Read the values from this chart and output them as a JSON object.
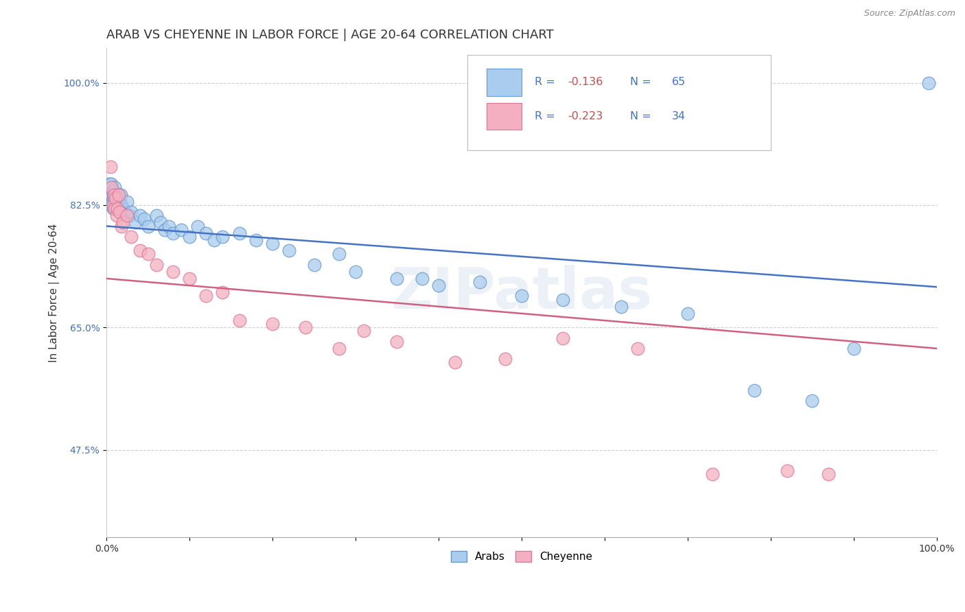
{
  "title": "ARAB VS CHEYENNE IN LABOR FORCE | AGE 20-64 CORRELATION CHART",
  "source_text": "Source: ZipAtlas.com",
  "ylabel": "In Labor Force | Age 20-64",
  "watermark": "ZIPatlas",
  "xlim": [
    0.0,
    1.0
  ],
  "ylim": [
    0.35,
    1.05
  ],
  "xticks": [
    0.0,
    0.1,
    0.2,
    0.3,
    0.4,
    0.5,
    0.6,
    0.7,
    0.8,
    0.9,
    1.0
  ],
  "xticklabels": [
    "0.0%",
    "",
    "",
    "",
    "",
    "",
    "",
    "",
    "",
    "",
    "100.0%"
  ],
  "yticks": [
    0.475,
    0.65,
    0.825,
    1.0
  ],
  "yticklabels": [
    "47.5%",
    "65.0%",
    "82.5%",
    "100.0%"
  ],
  "grid_color": "#c8c8c8",
  "background_color": "#ffffff",
  "arab_color": "#aaccee",
  "arab_edge_color": "#6699cc",
  "cheyenne_color": "#f4b0c0",
  "cheyenne_edge_color": "#dd7799",
  "arab_line_color": "#4472c4",
  "cheyenne_line_color": "#d06080",
  "arab_R": -0.136,
  "arab_N": 65,
  "cheyenne_R": -0.223,
  "cheyenne_N": 34,
  "legend_label_arab": "Arabs",
  "legend_label_cheyenne": "Cheyenne",
  "legend_R_color": "#c0504d",
  "legend_N_color": "#4472c4",
  "title_fontsize": 13,
  "axis_label_fontsize": 11,
  "tick_fontsize": 10,
  "arab_x": [
    0.003,
    0.004,
    0.005,
    0.005,
    0.006,
    0.006,
    0.007,
    0.007,
    0.008,
    0.008,
    0.009,
    0.009,
    0.01,
    0.01,
    0.01,
    0.011,
    0.011,
    0.012,
    0.012,
    0.013,
    0.013,
    0.014,
    0.015,
    0.016,
    0.017,
    0.018,
    0.02,
    0.022,
    0.025,
    0.028,
    0.03,
    0.035,
    0.04,
    0.045,
    0.05,
    0.06,
    0.065,
    0.07,
    0.075,
    0.08,
    0.09,
    0.1,
    0.11,
    0.12,
    0.13,
    0.14,
    0.16,
    0.18,
    0.2,
    0.22,
    0.25,
    0.28,
    0.3,
    0.35,
    0.38,
    0.4,
    0.45,
    0.5,
    0.55,
    0.62,
    0.7,
    0.78,
    0.85,
    0.9,
    0.99
  ],
  "arab_y": [
    0.855,
    0.84,
    0.835,
    0.825,
    0.84,
    0.855,
    0.83,
    0.845,
    0.835,
    0.82,
    0.84,
    0.845,
    0.835,
    0.825,
    0.85,
    0.84,
    0.83,
    0.84,
    0.825,
    0.835,
    0.82,
    0.84,
    0.83,
    0.835,
    0.84,
    0.825,
    0.82,
    0.815,
    0.83,
    0.81,
    0.815,
    0.8,
    0.81,
    0.805,
    0.795,
    0.81,
    0.8,
    0.79,
    0.795,
    0.785,
    0.79,
    0.78,
    0.795,
    0.785,
    0.775,
    0.78,
    0.785,
    0.775,
    0.77,
    0.76,
    0.74,
    0.755,
    0.73,
    0.72,
    0.72,
    0.71,
    0.715,
    0.695,
    0.69,
    0.68,
    0.67,
    0.56,
    0.545,
    0.62,
    1.0
  ],
  "cheyenne_x": [
    0.005,
    0.006,
    0.008,
    0.009,
    0.01,
    0.011,
    0.012,
    0.013,
    0.015,
    0.016,
    0.018,
    0.02,
    0.025,
    0.03,
    0.04,
    0.05,
    0.06,
    0.08,
    0.1,
    0.12,
    0.14,
    0.16,
    0.2,
    0.24,
    0.28,
    0.31,
    0.35,
    0.42,
    0.48,
    0.55,
    0.64,
    0.73,
    0.82,
    0.87
  ],
  "cheyenne_y": [
    0.88,
    0.85,
    0.825,
    0.84,
    0.82,
    0.835,
    0.81,
    0.82,
    0.84,
    0.815,
    0.795,
    0.8,
    0.81,
    0.78,
    0.76,
    0.755,
    0.74,
    0.73,
    0.72,
    0.695,
    0.7,
    0.66,
    0.655,
    0.65,
    0.62,
    0.645,
    0.63,
    0.6,
    0.605,
    0.635,
    0.62,
    0.44,
    0.445,
    0.44
  ],
  "arab_trendline": [
    0.795,
    0.708
  ],
  "cheyenne_trendline": [
    0.72,
    0.62
  ]
}
